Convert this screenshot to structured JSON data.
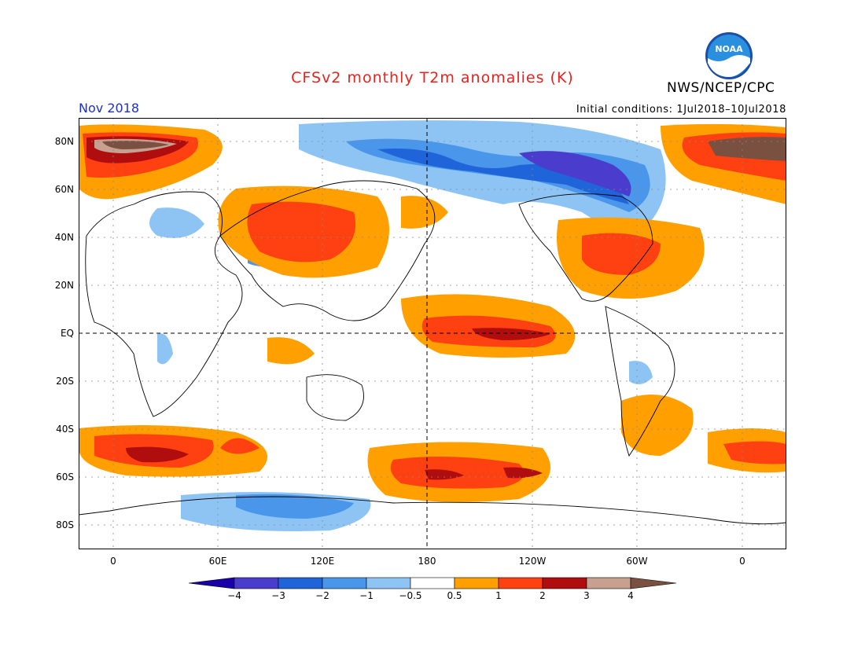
{
  "header": {
    "title": "CFSv2 monthly T2m anomalies (K)",
    "agency": "NWS/NCEP/CPC",
    "logo_text": "NOAA",
    "month": "Nov 2018",
    "initial_conditions": "Initial conditions: 1Jul2018–10Jul2018"
  },
  "map": {
    "lat_labels": [
      "80N",
      "60N",
      "40N",
      "20N",
      "EQ",
      "20S",
      "40S",
      "60S",
      "80S"
    ],
    "lon_labels": [
      "0",
      "60E",
      "120E",
      "180",
      "120W",
      "60W",
      "0"
    ]
  },
  "legend": {
    "labels": [
      "−4",
      "−3",
      "−2",
      "−1",
      "−0.5",
      "0.5",
      "1",
      "2",
      "3",
      "4"
    ],
    "colors": [
      "#1a00a8",
      "#4a3ccc",
      "#1f64d8",
      "#4a96ea",
      "#8ec4f4",
      "#ffffff",
      "#ffa000",
      "#ff4010",
      "#b00e0e",
      "#c8a090",
      "#7a5040"
    ]
  },
  "colors": {
    "title": "#e8221c",
    "month": "#1d2ed8"
  }
}
